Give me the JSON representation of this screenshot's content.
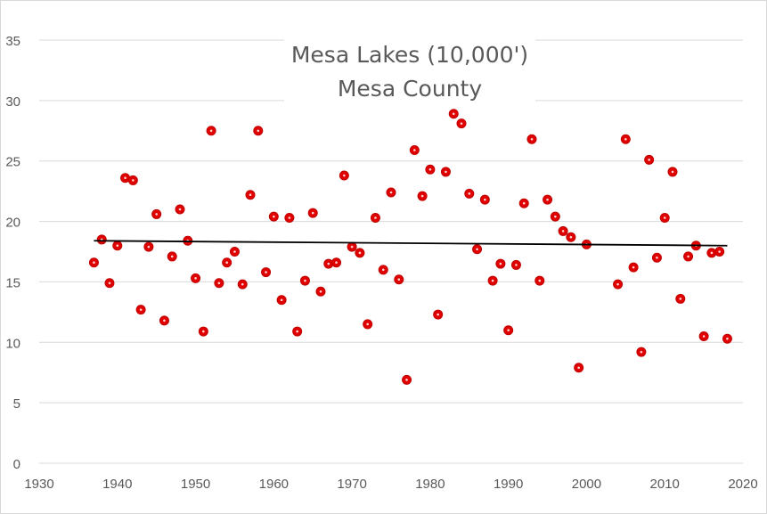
{
  "chart_data": {
    "type": "scatter",
    "title_lines": [
      "Mesa Lakes (10,000')",
      "Mesa County"
    ],
    "xlabel": "",
    "ylabel": "",
    "xlim": [
      1930,
      2020
    ],
    "ylim": [
      0,
      35
    ],
    "x_ticks": [
      1930,
      1940,
      1950,
      1960,
      1970,
      1980,
      1990,
      2000,
      2010,
      2020
    ],
    "y_ticks": [
      0,
      5,
      10,
      15,
      20,
      25,
      30,
      35
    ],
    "grid": "horizontal",
    "legend": "none",
    "marker_color": "#e00000",
    "trendline": {
      "type": "linear",
      "color": "#000000",
      "x": [
        1937,
        2018
      ],
      "y": [
        18.4,
        18.0
      ]
    },
    "points": [
      {
        "x": 1937,
        "y": 16.6
      },
      {
        "x": 1938,
        "y": 18.5
      },
      {
        "x": 1939,
        "y": 14.9
      },
      {
        "x": 1940,
        "y": 18.0
      },
      {
        "x": 1941,
        "y": 23.6
      },
      {
        "x": 1942,
        "y": 23.4
      },
      {
        "x": 1943,
        "y": 12.7
      },
      {
        "x": 1944,
        "y": 17.9
      },
      {
        "x": 1945,
        "y": 20.6
      },
      {
        "x": 1946,
        "y": 11.8
      },
      {
        "x": 1947,
        "y": 17.1
      },
      {
        "x": 1948,
        "y": 21.0
      },
      {
        "x": 1949,
        "y": 18.4
      },
      {
        "x": 1950,
        "y": 15.3
      },
      {
        "x": 1951,
        "y": 10.9
      },
      {
        "x": 1952,
        "y": 27.5
      },
      {
        "x": 1953,
        "y": 14.9
      },
      {
        "x": 1954,
        "y": 16.6
      },
      {
        "x": 1955,
        "y": 17.5
      },
      {
        "x": 1956,
        "y": 14.8
      },
      {
        "x": 1957,
        "y": 22.2
      },
      {
        "x": 1958,
        "y": 27.5
      },
      {
        "x": 1959,
        "y": 15.8
      },
      {
        "x": 1960,
        "y": 20.4
      },
      {
        "x": 1961,
        "y": 13.5
      },
      {
        "x": 1962,
        "y": 20.3
      },
      {
        "x": 1963,
        "y": 10.9
      },
      {
        "x": 1964,
        "y": 15.1
      },
      {
        "x": 1965,
        "y": 20.7
      },
      {
        "x": 1966,
        "y": 14.2
      },
      {
        "x": 1967,
        "y": 16.5
      },
      {
        "x": 1968,
        "y": 16.6
      },
      {
        "x": 1969,
        "y": 23.8
      },
      {
        "x": 1970,
        "y": 17.9
      },
      {
        "x": 1971,
        "y": 17.4
      },
      {
        "x": 1972,
        "y": 11.5
      },
      {
        "x": 1973,
        "y": 20.3
      },
      {
        "x": 1974,
        "y": 16.0
      },
      {
        "x": 1975,
        "y": 22.4
      },
      {
        "x": 1976,
        "y": 15.2
      },
      {
        "x": 1977,
        "y": 6.9
      },
      {
        "x": 1978,
        "y": 25.9
      },
      {
        "x": 1979,
        "y": 22.1
      },
      {
        "x": 1980,
        "y": 24.3
      },
      {
        "x": 1981,
        "y": 12.3
      },
      {
        "x": 1982,
        "y": 24.1
      },
      {
        "x": 1983,
        "y": 28.9
      },
      {
        "x": 1984,
        "y": 28.1
      },
      {
        "x": 1985,
        "y": 22.3
      },
      {
        "x": 1986,
        "y": 17.7
      },
      {
        "x": 1987,
        "y": 21.8
      },
      {
        "x": 1988,
        "y": 15.1
      },
      {
        "x": 1989,
        "y": 16.5
      },
      {
        "x": 1990,
        "y": 11.0
      },
      {
        "x": 1991,
        "y": 16.4
      },
      {
        "x": 1992,
        "y": 21.5
      },
      {
        "x": 1993,
        "y": 26.8
      },
      {
        "x": 1994,
        "y": 15.1
      },
      {
        "x": 1995,
        "y": 21.8
      },
      {
        "x": 1996,
        "y": 20.4
      },
      {
        "x": 1997,
        "y": 19.2
      },
      {
        "x": 1998,
        "y": 18.7
      },
      {
        "x": 1999,
        "y": 7.9
      },
      {
        "x": 2000,
        "y": 18.1
      },
      {
        "x": 2004,
        "y": 14.8
      },
      {
        "x": 2005,
        "y": 26.8
      },
      {
        "x": 2006,
        "y": 16.2
      },
      {
        "x": 2007,
        "y": 9.2
      },
      {
        "x": 2008,
        "y": 25.1
      },
      {
        "x": 2009,
        "y": 17.0
      },
      {
        "x": 2010,
        "y": 20.3
      },
      {
        "x": 2011,
        "y": 24.1
      },
      {
        "x": 2012,
        "y": 13.6
      },
      {
        "x": 2013,
        "y": 17.1
      },
      {
        "x": 2014,
        "y": 18.0
      },
      {
        "x": 2015,
        "y": 10.5
      },
      {
        "x": 2016,
        "y": 17.4
      },
      {
        "x": 2017,
        "y": 17.5
      },
      {
        "x": 2018,
        "y": 10.3
      }
    ]
  }
}
